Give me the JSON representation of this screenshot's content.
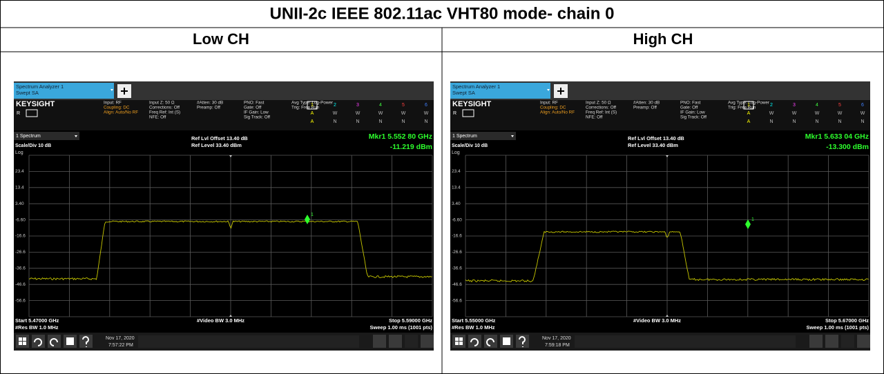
{
  "title": "UNII-2c IEEE 802.11ac VHT80 mode- chain 0",
  "headers": [
    "Low CH",
    "High CH"
  ],
  "panels": [
    {
      "tab_title": "Spectrum Analyzer 1",
      "tab_subtitle": "Swept SA",
      "brand": "KEYSIGHT",
      "mode_letter": "R",
      "info": [
        [
          "Input: RF",
          "Coupling: DC",
          "Align: Auto/No RF"
        ],
        [
          "Input Z: 50 Ω",
          "Corrections: Off",
          "Freq Ref: Int (S)",
          "NFE: Off"
        ],
        [
          "#Atten: 30 dB",
          "Preamp: Off"
        ],
        [
          "PNO: Fast",
          "Gate: Off",
          "IF Gain: Low",
          "Sig Track: Off"
        ],
        [
          "Avg Type: Log-Power",
          "Trig: Free Run"
        ]
      ],
      "trace_numbers": [
        "1",
        "2",
        "3",
        "4",
        "5",
        "6"
      ],
      "trace_types": [
        "A",
        "W",
        "W",
        "W",
        "W",
        "W"
      ],
      "detectors": [
        "A",
        "N",
        "N",
        "N",
        "N",
        "N"
      ],
      "window": "1 Spectrum",
      "ref_offset": "Ref Lvl Offset 13.40 dB",
      "ref_level": "Ref Level 33.40 dBm",
      "marker": "Mkr1  5.552 80 GHz",
      "marker_value": "-11.219 dBm",
      "marker_id": "1",
      "scale": "Scale/Div 10 dB",
      "log": "Log",
      "y_labels": [
        "23.4",
        "13.4",
        "3.40",
        "-6.60",
        "-16.6",
        "-26.6",
        "-36.6",
        "-46.6",
        "-56.6"
      ],
      "start": "Start 5.47000 GHz",
      "res_bw": "#Res BW 1.0 MHz",
      "video_bw": "#Video BW 3.0 MHz",
      "stop": "Stop 5.59000 GHz",
      "sweep": "Sweep 1.00 ms (1001 pts)",
      "date": "Nov 17, 2020",
      "time": "7:57:22 PM"
    },
    {
      "tab_title": "Spectrum Analyzer 1",
      "tab_subtitle": "Swept SA",
      "brand": "KEYSIGHT",
      "mode_letter": "R",
      "info": [
        [
          "Input: RF",
          "Coupling: DC",
          "Align: Auto/No RF"
        ],
        [
          "Input Z: 50 Ω",
          "Corrections: Off",
          "Freq Ref: Int (S)",
          "NFE: Off"
        ],
        [
          "#Atten: 30 dB",
          "Preamp: Off"
        ],
        [
          "PNO: Fast",
          "Gate: Off",
          "IF Gain: Low",
          "Sig Track: Off"
        ],
        [
          "Avg Type: Log-Power",
          "Trig: Free Run"
        ]
      ],
      "trace_numbers": [
        "1",
        "2",
        "3",
        "4",
        "5",
        "6"
      ],
      "trace_types": [
        "A",
        "W",
        "W",
        "W",
        "W",
        "W"
      ],
      "detectors": [
        "A",
        "N",
        "N",
        "N",
        "N",
        "N"
      ],
      "window": "1 Spectrum",
      "ref_offset": "Ref Lvl Offset 13.40 dB",
      "ref_level": "Ref Level 33.40 dBm",
      "marker": "Mkr1  5.633 04 GHz",
      "marker_value": "-13.300 dBm",
      "marker_id": "1",
      "scale": "Scale/Div 10 dB",
      "log": "Log",
      "y_labels": [
        "23.4",
        "13.4",
        "3.40",
        "-6.60",
        "-16.6",
        "-26.6",
        "-36.6",
        "-46.6",
        "-56.6"
      ],
      "start": "Start 5.55000 GHz",
      "res_bw": "#Res BW 1.0 MHz",
      "video_bw": "#Video BW 3.0 MHz",
      "stop": "Stop 5.67000 GHz",
      "sweep": "Sweep 1.00 ms (1001 pts)",
      "date": "Nov 17, 2020",
      "time": "7:59:18 PM"
    }
  ]
}
